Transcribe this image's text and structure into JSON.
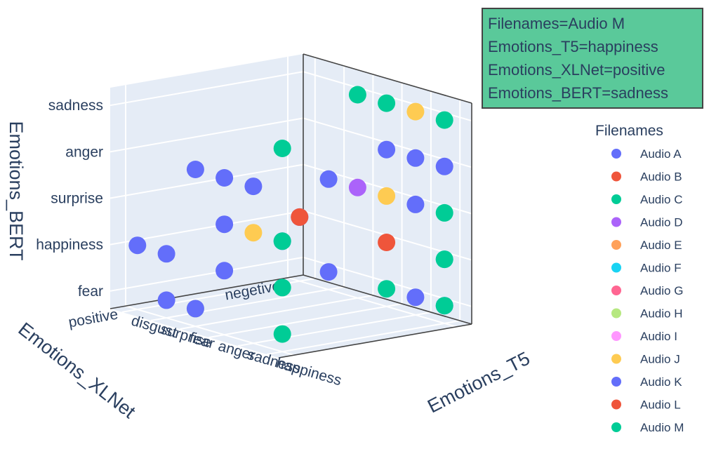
{
  "chart_data": {
    "type": "scatter3d",
    "xlabel": "Emotions_XLNet",
    "ylabel": "Emotions_T5",
    "zlabel": "Emotions_BERT",
    "x_categories": [
      "negetive",
      "positive"
    ],
    "y_categories": [
      "disgust",
      "surprise",
      "fear",
      "anger",
      "sadness",
      "happiness"
    ],
    "z_categories": [
      "fear",
      "happiness",
      "surprise",
      "anger",
      "sadness"
    ],
    "legend_title": "Filenames",
    "legend_position": "right",
    "series": [
      {
        "name": "Audio A",
        "color": "#636efa",
        "points": []
      },
      {
        "name": "Audio B",
        "color": "#ef553b",
        "points": []
      },
      {
        "name": "Audio C",
        "color": "#00cc96",
        "points": []
      },
      {
        "name": "Audio D",
        "color": "#ab63fa",
        "points": [
          {
            "x": "negetive",
            "y": "fear",
            "z": "surprise"
          }
        ]
      },
      {
        "name": "Audio E",
        "color": "#ffa15a",
        "points": []
      },
      {
        "name": "Audio F",
        "color": "#19d3f3",
        "points": [
          {
            "x": "negetive",
            "y": "happiness",
            "z": "happiness"
          }
        ]
      },
      {
        "name": "Audio G",
        "color": "#ff6692",
        "points": []
      },
      {
        "name": "Audio H",
        "color": "#b6e880",
        "points": [
          {
            "x": "positive",
            "y": "fear",
            "z": "fear"
          }
        ]
      },
      {
        "name": "Audio I",
        "color": "#ff97ff",
        "points": []
      },
      {
        "name": "Audio J",
        "color": "#fecb52",
        "points": [
          {
            "x": "negetive",
            "y": "sadness",
            "z": "sadness"
          },
          {
            "x": "negetive",
            "y": "anger",
            "z": "surprise"
          },
          {
            "x": "positive",
            "y": "sadness",
            "z": "surprise"
          }
        ]
      },
      {
        "name": "Audio K",
        "color": "#636efa",
        "points": [
          {
            "x": "negetive",
            "y": "anger",
            "z": "anger"
          },
          {
            "x": "negetive",
            "y": "sadness",
            "z": "anger"
          },
          {
            "x": "negetive",
            "y": "happiness",
            "z": "anger"
          },
          {
            "x": "positive",
            "y": "fear",
            "z": "anger"
          },
          {
            "x": "positive",
            "y": "anger",
            "z": "anger"
          },
          {
            "x": "positive",
            "y": "sadness",
            "z": "anger"
          },
          {
            "x": "negetive",
            "y": "surprise",
            "z": "surprise"
          },
          {
            "x": "negetive",
            "y": "sadness",
            "z": "surprise"
          },
          {
            "x": "positive",
            "y": "anger",
            "z": "surprise"
          },
          {
            "x": "positive",
            "y": "happiness",
            "z": "surprise"
          },
          {
            "x": "negetive",
            "y": "disgust",
            "z": "happiness"
          },
          {
            "x": "positive",
            "y": "disgust",
            "z": "happiness"
          },
          {
            "x": "positive",
            "y": "anger",
            "z": "happiness"
          },
          {
            "x": "positive",
            "y": "surprise",
            "z": "happiness"
          },
          {
            "x": "negetive",
            "y": "sadness",
            "z": "fear"
          },
          {
            "x": "negetive",
            "y": "happiness",
            "z": "fear"
          },
          {
            "x": "negetive",
            "y": "surprise",
            "z": "fear"
          },
          {
            "x": "positive",
            "y": "surprise",
            "z": "fear"
          },
          {
            "x": "positive",
            "y": "fear",
            "z": "fear"
          }
        ]
      },
      {
        "name": "Audio L",
        "color": "#ef553b",
        "points": [
          {
            "x": "negetive",
            "y": "disgust",
            "z": "happiness"
          },
          {
            "x": "negetive",
            "y": "anger",
            "z": "happiness"
          }
        ]
      },
      {
        "name": "Audio M",
        "color": "#00cc96",
        "points": [
          {
            "x": "negetive",
            "y": "fear",
            "z": "sadness"
          },
          {
            "x": "negetive",
            "y": "anger",
            "z": "sadness"
          },
          {
            "x": "negetive",
            "y": "happiness",
            "z": "sadness"
          },
          {
            "x": "positive",
            "y": "happiness",
            "z": "sadness"
          },
          {
            "x": "negetive",
            "y": "happiness",
            "z": "surprise"
          },
          {
            "x": "positive",
            "y": "happiness",
            "z": "surprise"
          },
          {
            "x": "negetive",
            "y": "happiness",
            "z": "happiness"
          },
          {
            "x": "positive",
            "y": "happiness",
            "z": "happiness"
          },
          {
            "x": "negetive",
            "y": "happiness",
            "z": "fear"
          },
          {
            "x": "negetive",
            "y": "anger",
            "z": "fear"
          },
          {
            "x": "positive",
            "y": "happiness",
            "z": "fear"
          }
        ]
      }
    ],
    "hover": {
      "lines": [
        "Filenames=Audio M",
        "Emotions_T5=happiness",
        "Emotions_XLNet=positive",
        "Emotions_BERT=sadness"
      ]
    }
  }
}
